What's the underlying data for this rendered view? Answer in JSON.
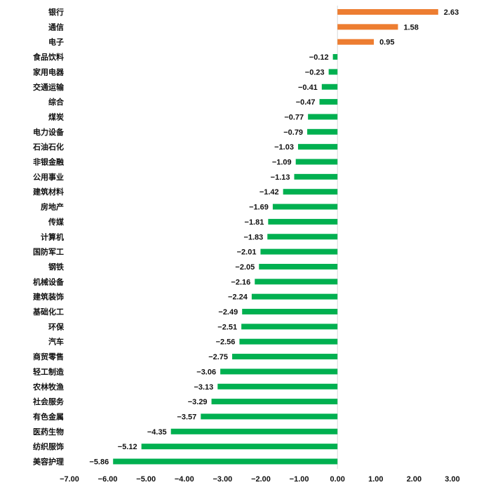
{
  "chart_data": {
    "type": "bar",
    "orientation": "horizontal",
    "categories": [
      "银行",
      "通信",
      "电子",
      "食品饮料",
      "家用电器",
      "交通运输",
      "综合",
      "煤炭",
      "电力设备",
      "石油石化",
      "非银金融",
      "公用事业",
      "建筑材料",
      "房地产",
      "传媒",
      "计算机",
      "国防军工",
      "钢铁",
      "机械设备",
      "建筑装饰",
      "基础化工",
      "环保",
      "汽车",
      "商贸零售",
      "轻工制造",
      "农林牧渔",
      "社会服务",
      "有色金属",
      "医药生物",
      "纺织服饰",
      "美容护理"
    ],
    "values": [
      2.63,
      1.58,
      0.95,
      -0.12,
      -0.23,
      -0.41,
      -0.47,
      -0.77,
      -0.79,
      -1.03,
      -1.09,
      -1.13,
      -1.42,
      -1.69,
      -1.81,
      -1.83,
      -2.01,
      -2.05,
      -2.16,
      -2.24,
      -2.49,
      -2.51,
      -2.56,
      -2.75,
      -3.06,
      -3.13,
      -3.29,
      -3.57,
      -4.35,
      -5.12,
      -5.86
    ],
    "value_labels": [
      "2.63",
      "1.58",
      "0.95",
      "−0.12",
      "−0.23",
      "−0.41",
      "−0.47",
      "−0.77",
      "−0.79",
      "−1.03",
      "−1.09",
      "−1.13",
      "−1.42",
      "−1.69",
      "−1.81",
      "−1.83",
      "−2.01",
      "−2.05",
      "−2.16",
      "−2.24",
      "−2.49",
      "−2.51",
      "−2.56",
      "−2.75",
      "−3.06",
      "−3.13",
      "−3.29",
      "−3.57",
      "−4.35",
      "−5.12",
      "−5.86"
    ],
    "xlim": [
      -7,
      3
    ],
    "xticks": [
      -7,
      -6,
      -5,
      -4,
      -3,
      -2,
      -1,
      0,
      1,
      2,
      3
    ],
    "xtick_labels": [
      "−7.00",
      "−6.00",
      "−5.00",
      "−4.00",
      "−3.00",
      "−2.00",
      "−1.00",
      "0.00",
      "1.00",
      "2.00",
      "3.00"
    ],
    "grid": false,
    "legend": "none",
    "colors": {
      "positive": "#ED7D31",
      "negative": "#00B050",
      "zero_line": "#D9D9D9"
    }
  }
}
